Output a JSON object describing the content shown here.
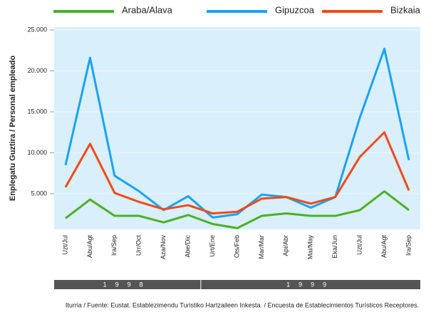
{
  "chart_data": {
    "type": "line",
    "y_label": "Enplegatu Guztira / Personal empleado",
    "source": "Iturria / Fuente: Eustat. Establezimendu Turistiko Hartzaileen Inkesta. / Encuesta de Establecimientos Turísticos Receptores.",
    "categories": [
      "Uzt/Jul",
      "Abu/Agt",
      "Ira/Sep",
      "Urr/Oct",
      "Aza/Nov",
      "Abe/Dic",
      "Urt/Ene",
      "Ots/Feb",
      "Mar/Mar",
      "Api/Abr",
      "Mai/May",
      "Eka/Jun",
      "Uzt/Jul",
      "Abu/Agt",
      "Ira/Sep"
    ],
    "x_groups": [
      {
        "label": "1998",
        "span": 6
      },
      {
        "label": "1999",
        "span": 9
      }
    ],
    "series": [
      {
        "name": "Araba/Alava",
        "color": "#4caf2a",
        "values": [
          2000,
          4300,
          2300,
          2300,
          1500,
          2400,
          1300,
          800,
          2300,
          2600,
          2300,
          2300,
          3000,
          5300,
          3000
        ]
      },
      {
        "name": "Gipuzcoa",
        "color": "#1aa3f0",
        "values": [
          8500,
          21600,
          7200,
          5300,
          3000,
          4700,
          2100,
          2500,
          4900,
          4600,
          3300,
          4600,
          14300,
          22700,
          9100
        ]
      },
      {
        "name": "Bizkaia",
        "color": "#f04a1a",
        "values": [
          5800,
          11100,
          5100,
          4000,
          3100,
          3600,
          2600,
          2800,
          4400,
          4600,
          3800,
          4600,
          9500,
          12500,
          5400
        ]
      }
    ],
    "ylim": [
      650,
      25350
    ],
    "yticks": [
      {
        "value": 5000,
        "label": "5.000"
      },
      {
        "value": 10000,
        "label": "10.000"
      },
      {
        "value": 15000,
        "label": "15.000"
      },
      {
        "value": 20000,
        "label": "20.000"
      },
      {
        "value": 25000,
        "label": "25.000"
      }
    ],
    "grid": true,
    "legend": "top"
  }
}
